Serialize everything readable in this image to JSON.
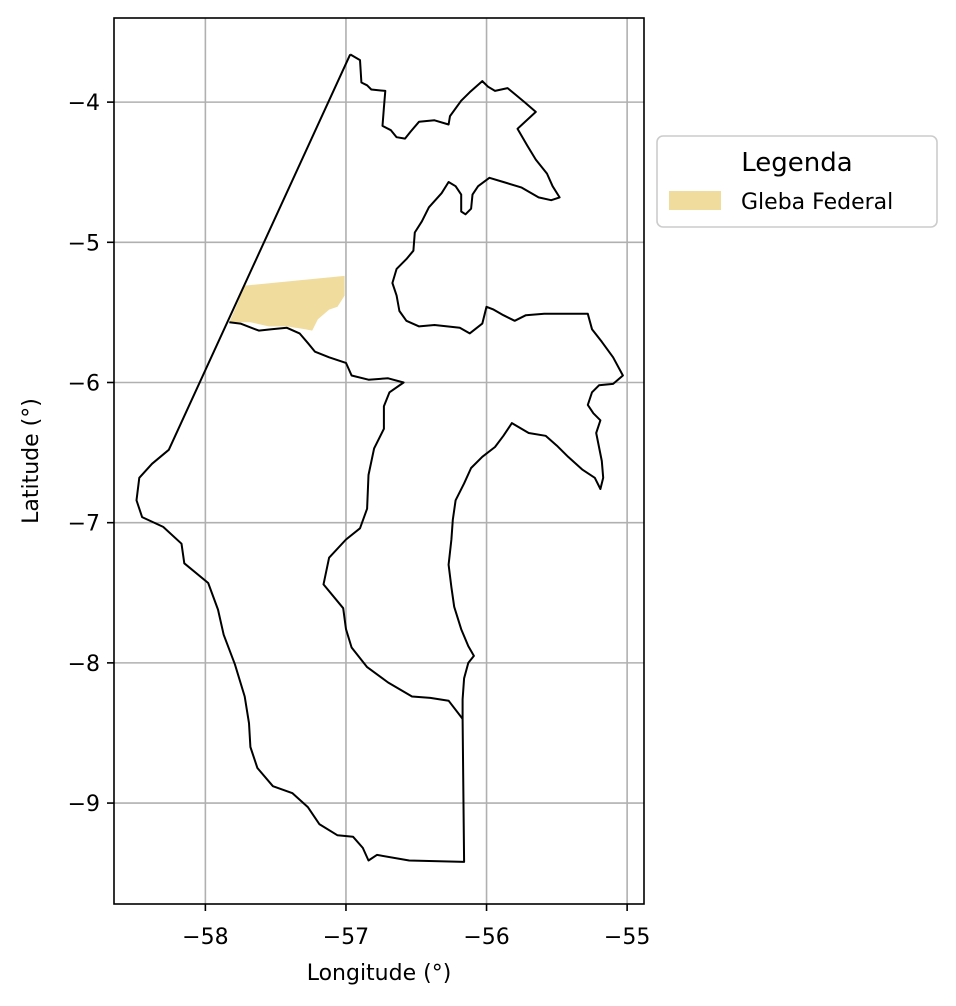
{
  "chart_data": {
    "type": "map",
    "xlabel": "Longitude (°)",
    "ylabel": "Latitude (°)",
    "xlim": [
      -58.65,
      -54.88
    ],
    "ylim": [
      -9.72,
      -3.4
    ],
    "grid": true,
    "xticks": [
      -58,
      -57,
      -56,
      -55
    ],
    "xtick_labels": [
      "−58",
      "−57",
      "−56",
      "−55"
    ],
    "yticks": [
      -4,
      -5,
      -6,
      -7,
      -8,
      -9
    ],
    "ytick_labels": [
      "−4",
      "−5",
      "−6",
      "−7",
      "−8",
      "−9"
    ],
    "legend": {
      "title": "Legenda",
      "placement": "outside-upper-right",
      "entries": [
        {
          "label": "Gleba Federal",
          "color": "#f0dc9c"
        }
      ]
    },
    "layers": [
      {
        "name": "municipal-boundary",
        "type": "outline",
        "color": "#000000",
        "coordinates": [
          [
            -56.97,
            -3.66
          ],
          [
            -56.9,
            -3.7
          ],
          [
            -56.89,
            -3.86
          ],
          [
            -56.85,
            -3.88
          ],
          [
            -56.82,
            -3.91
          ],
          [
            -56.72,
            -3.92
          ],
          [
            -56.73,
            -4.04
          ],
          [
            -56.74,
            -4.17
          ],
          [
            -56.68,
            -4.2
          ],
          [
            -56.64,
            -4.25
          ],
          [
            -56.58,
            -4.26
          ],
          [
            -56.54,
            -4.21
          ],
          [
            -56.48,
            -4.14
          ],
          [
            -56.37,
            -4.13
          ],
          [
            -56.27,
            -4.16
          ],
          [
            -56.26,
            -4.1
          ],
          [
            -56.18,
            -3.99
          ],
          [
            -56.12,
            -3.93
          ],
          [
            -56.03,
            -3.85
          ],
          [
            -55.99,
            -3.89
          ],
          [
            -55.94,
            -3.92
          ],
          [
            -55.85,
            -3.9
          ],
          [
            -55.79,
            -3.95
          ],
          [
            -55.73,
            -4.0
          ],
          [
            -55.65,
            -4.07
          ],
          [
            -55.78,
            -4.19
          ],
          [
            -55.71,
            -4.31
          ],
          [
            -55.65,
            -4.41
          ],
          [
            -55.57,
            -4.51
          ],
          [
            -55.53,
            -4.6
          ],
          [
            -55.48,
            -4.68
          ],
          [
            -55.54,
            -4.7
          ],
          [
            -55.63,
            -4.68
          ],
          [
            -55.75,
            -4.61
          ],
          [
            -55.88,
            -4.57
          ],
          [
            -55.98,
            -4.54
          ],
          [
            -56.06,
            -4.6
          ],
          [
            -56.1,
            -4.66
          ],
          [
            -56.11,
            -4.76
          ],
          [
            -56.15,
            -4.8
          ],
          [
            -56.18,
            -4.78
          ],
          [
            -56.18,
            -4.66
          ],
          [
            -56.22,
            -4.6
          ],
          [
            -56.27,
            -4.57
          ],
          [
            -56.32,
            -4.65
          ],
          [
            -56.41,
            -4.75
          ],
          [
            -56.46,
            -4.85
          ],
          [
            -56.51,
            -4.93
          ],
          [
            -56.52,
            -5.06
          ],
          [
            -56.57,
            -5.12
          ],
          [
            -56.64,
            -5.19
          ],
          [
            -56.67,
            -5.29
          ],
          [
            -56.64,
            -5.38
          ],
          [
            -56.62,
            -5.49
          ],
          [
            -56.57,
            -5.56
          ],
          [
            -56.48,
            -5.6
          ],
          [
            -56.37,
            -5.59
          ],
          [
            -56.28,
            -5.6
          ],
          [
            -56.19,
            -5.61
          ],
          [
            -56.12,
            -5.65
          ],
          [
            -56.03,
            -5.58
          ],
          [
            -56.0,
            -5.46
          ],
          [
            -55.95,
            -5.48
          ],
          [
            -55.88,
            -5.52
          ],
          [
            -55.8,
            -5.56
          ],
          [
            -55.72,
            -5.52
          ],
          [
            -55.59,
            -5.51
          ],
          [
            -55.28,
            -5.51
          ],
          [
            -55.25,
            -5.62
          ],
          [
            -55.18,
            -5.71
          ],
          [
            -55.1,
            -5.82
          ],
          [
            -55.03,
            -5.95
          ],
          [
            -55.1,
            -6.01
          ],
          [
            -55.2,
            -6.02
          ],
          [
            -55.25,
            -6.07
          ],
          [
            -55.28,
            -6.16
          ],
          [
            -55.24,
            -6.22
          ],
          [
            -55.19,
            -6.27
          ],
          [
            -55.22,
            -6.36
          ],
          [
            -55.2,
            -6.46
          ],
          [
            -55.18,
            -6.56
          ],
          [
            -55.17,
            -6.68
          ],
          [
            -55.19,
            -6.76
          ],
          [
            -55.23,
            -6.68
          ],
          [
            -55.32,
            -6.62
          ],
          [
            -55.42,
            -6.53
          ],
          [
            -55.5,
            -6.45
          ],
          [
            -55.58,
            -6.38
          ],
          [
            -55.7,
            -6.36
          ],
          [
            -55.82,
            -6.29
          ],
          [
            -55.88,
            -6.38
          ],
          [
            -55.94,
            -6.46
          ],
          [
            -56.03,
            -6.53
          ],
          [
            -56.11,
            -6.61
          ],
          [
            -56.16,
            -6.72
          ],
          [
            -56.22,
            -6.84
          ],
          [
            -56.24,
            -6.98
          ],
          [
            -56.25,
            -7.12
          ],
          [
            -56.27,
            -7.3
          ],
          [
            -56.25,
            -7.46
          ],
          [
            -56.23,
            -7.6
          ],
          [
            -56.18,
            -7.76
          ],
          [
            -56.13,
            -7.88
          ],
          [
            -56.09,
            -7.95
          ],
          [
            -56.13,
            -8.0
          ],
          [
            -56.16,
            -8.11
          ],
          [
            -56.17,
            -8.26
          ],
          [
            -56.17,
            -8.4
          ],
          [
            -56.16,
            -9.42
          ],
          [
            -56.55,
            -9.41
          ],
          [
            -56.78,
            -9.37
          ],
          [
            -56.84,
            -9.41
          ],
          [
            -56.88,
            -9.32
          ],
          [
            -56.95,
            -9.24
          ],
          [
            -57.06,
            -9.23
          ],
          [
            -57.19,
            -9.15
          ],
          [
            -57.27,
            -9.03
          ],
          [
            -57.38,
            -8.93
          ],
          [
            -57.52,
            -8.88
          ],
          [
            -57.63,
            -8.75
          ],
          [
            -57.68,
            -8.6
          ],
          [
            -57.69,
            -8.43
          ],
          [
            -57.72,
            -8.24
          ],
          [
            -57.79,
            -8.01
          ],
          [
            -57.87,
            -7.8
          ],
          [
            -57.91,
            -7.62
          ],
          [
            -57.98,
            -7.43
          ],
          [
            -58.15,
            -7.29
          ],
          [
            -58.17,
            -7.15
          ],
          [
            -58.3,
            -7.03
          ],
          [
            -58.45,
            -6.96
          ],
          [
            -58.49,
            -6.84
          ],
          [
            -58.47,
            -6.68
          ],
          [
            -58.38,
            -6.58
          ],
          [
            -58.26,
            -6.48
          ],
          [
            -56.97,
            -3.66
          ]
        ]
      },
      {
        "name": "municipal-boundary-inner",
        "type": "outline",
        "color": "#000000",
        "coordinates": [
          [
            -57.83,
            -5.57
          ],
          [
            -57.75,
            -5.58
          ],
          [
            -57.62,
            -5.63
          ],
          [
            -57.53,
            -5.62
          ],
          [
            -57.42,
            -5.61
          ],
          [
            -57.33,
            -5.65
          ],
          [
            -57.27,
            -5.72
          ],
          [
            -57.22,
            -5.78
          ],
          [
            -57.12,
            -5.82
          ],
          [
            -57.0,
            -5.86
          ],
          [
            -56.96,
            -5.95
          ],
          [
            -56.84,
            -5.98
          ],
          [
            -56.7,
            -5.97
          ],
          [
            -56.59,
            -6.0
          ],
          [
            -56.69,
            -6.07
          ],
          [
            -56.73,
            -6.17
          ],
          [
            -56.73,
            -6.33
          ],
          [
            -56.8,
            -6.47
          ],
          [
            -56.84,
            -6.66
          ],
          [
            -56.85,
            -6.9
          ],
          [
            -56.9,
            -7.04
          ],
          [
            -57.0,
            -7.12
          ],
          [
            -57.12,
            -7.25
          ],
          [
            -57.16,
            -7.44
          ],
          [
            -57.02,
            -7.61
          ],
          [
            -57.0,
            -7.76
          ],
          [
            -56.96,
            -7.89
          ],
          [
            -56.85,
            -8.03
          ],
          [
            -56.7,
            -8.14
          ],
          [
            -56.53,
            -8.24
          ],
          [
            -56.4,
            -8.25
          ],
          [
            -56.27,
            -8.27
          ],
          [
            -56.17,
            -8.4
          ]
        ]
      },
      {
        "name": "gleba-federal",
        "type": "fill",
        "color": "#f0dc9c",
        "coordinates": [
          [
            -57.73,
            -5.31
          ],
          [
            -57.01,
            -5.24
          ],
          [
            -57.01,
            -5.38
          ],
          [
            -57.06,
            -5.46
          ],
          [
            -57.12,
            -5.48
          ],
          [
            -57.2,
            -5.55
          ],
          [
            -57.24,
            -5.63
          ],
          [
            -57.29,
            -5.62
          ],
          [
            -57.42,
            -5.6
          ],
          [
            -57.55,
            -5.6
          ],
          [
            -57.68,
            -5.57
          ],
          [
            -57.83,
            -5.57
          ],
          [
            -57.76,
            -5.41
          ],
          [
            -57.73,
            -5.31
          ]
        ]
      }
    ]
  }
}
